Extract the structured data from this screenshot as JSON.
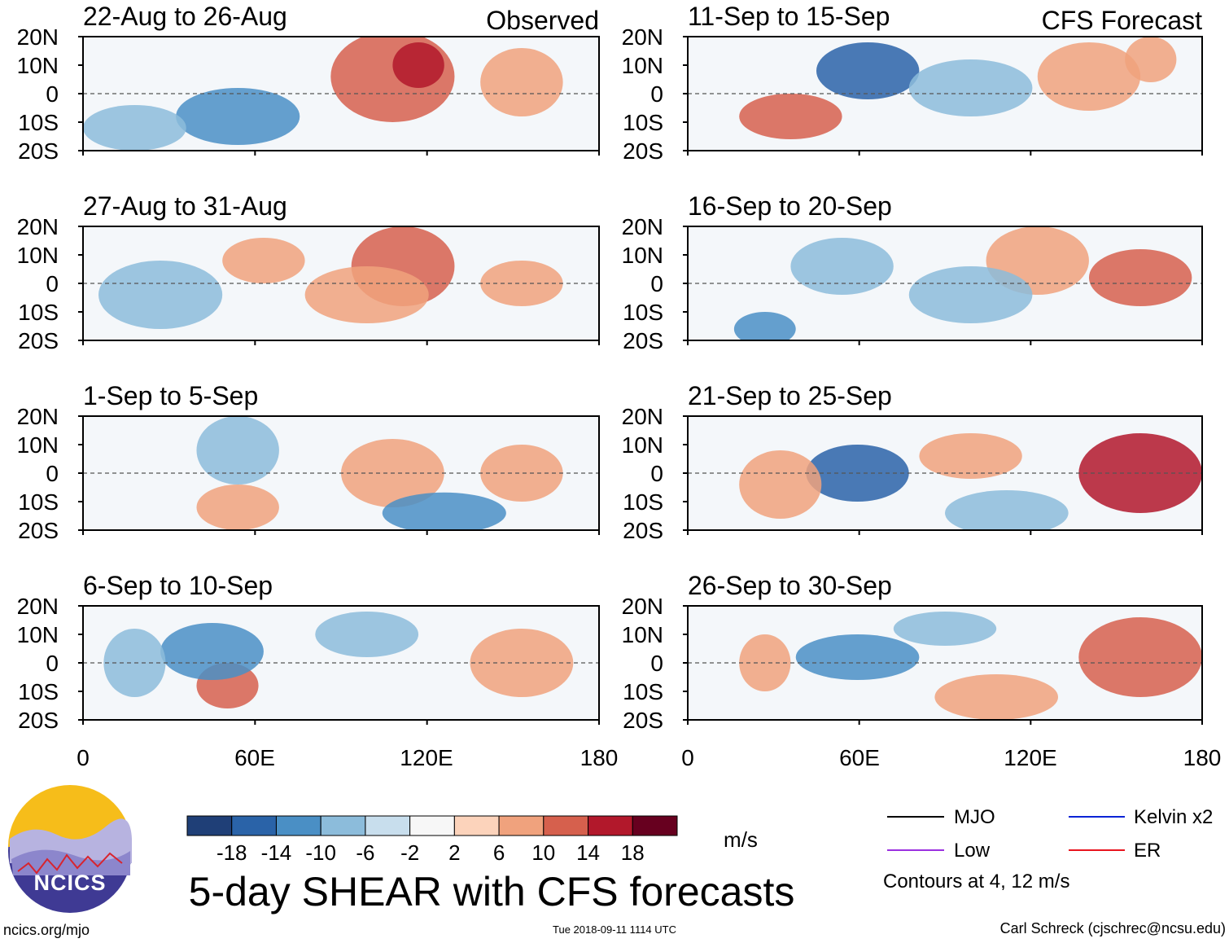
{
  "page": {
    "main_title": "5-day SHEAR with CFS forecasts",
    "website": "ncics.org/mjo",
    "timestamp": "Tue 2018-09-11 1114 UTC",
    "author": "Carl Schreck (cjschrec@ncsu.edu)",
    "logo_text": "NCICS"
  },
  "chart_data": {
    "type": "heatmap",
    "variable": "5-day SHEAR",
    "units": "m/s",
    "xticks": [
      "0",
      "60E",
      "120E",
      "180"
    ],
    "yticks": [
      "20N",
      "10N",
      "0",
      "10S",
      "20S"
    ],
    "xlim": [
      0,
      180
    ],
    "ylim": [
      -20,
      20
    ],
    "columns": [
      {
        "label": "Observed",
        "panels": [
          {
            "title": "22-Aug to 26-Aug"
          },
          {
            "title": "27-Aug to 31-Aug"
          },
          {
            "title": "1-Sep to 5-Sep"
          },
          {
            "title": "6-Sep to 10-Sep"
          }
        ]
      },
      {
        "label": "CFS Forecast",
        "panels": [
          {
            "title": "11-Sep to 15-Sep"
          },
          {
            "title": "16-Sep to 20-Sep"
          },
          {
            "title": "21-Sep to 25-Sep"
          },
          {
            "title": "26-Sep to 30-Sep"
          }
        ]
      }
    ],
    "colorbar": {
      "labels": [
        "-18",
        "-14",
        "-10",
        "-6",
        "-2",
        "2",
        "6",
        "10",
        "14",
        "18"
      ],
      "colors": [
        "#1f3f77",
        "#2a63a8",
        "#4a8fc5",
        "#8cbcdb",
        "#c8deed",
        "#f7f7f7",
        "#fcd3bb",
        "#f0a27d",
        "#d6604d",
        "#b2182b",
        "#67001f"
      ],
      "units": "m/s"
    },
    "legend": [
      {
        "label": "MJO",
        "color": "#000000"
      },
      {
        "label": "Kelvin x2",
        "color": "#0a23d6"
      },
      {
        "label": "Low",
        "color": "#9b30e0"
      },
      {
        "label": "ER",
        "color": "#e8141e"
      }
    ],
    "legend_note": "Contours at 4, 12 m/s"
  }
}
